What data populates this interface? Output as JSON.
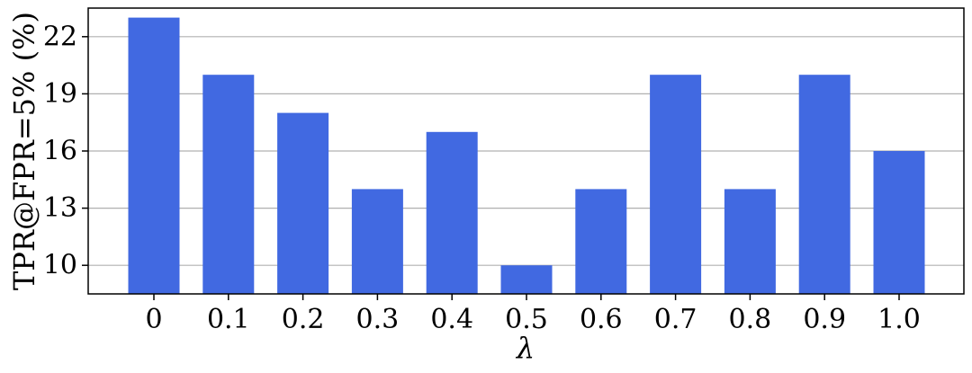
{
  "chart_data": {
    "type": "bar",
    "title": "",
    "xlabel": "λ",
    "ylabel": "TPR@FPR=5% (%)",
    "categories": [
      "0",
      "0.1",
      "0.2",
      "0.3",
      "0.4",
      "0.5",
      "0.6",
      "0.7",
      "0.8",
      "0.9",
      "1.0"
    ],
    "values": [
      23,
      20,
      18,
      14,
      17,
      10,
      14,
      20,
      14,
      20,
      16
    ],
    "ylim": [
      8.5,
      23.5
    ],
    "yticks": [
      10,
      13,
      16,
      19,
      22
    ],
    "ytick_labels": [
      "10",
      "13",
      "16",
      "19",
      "22"
    ],
    "grid": "horizontal",
    "bar_color": "#4169e1"
  }
}
